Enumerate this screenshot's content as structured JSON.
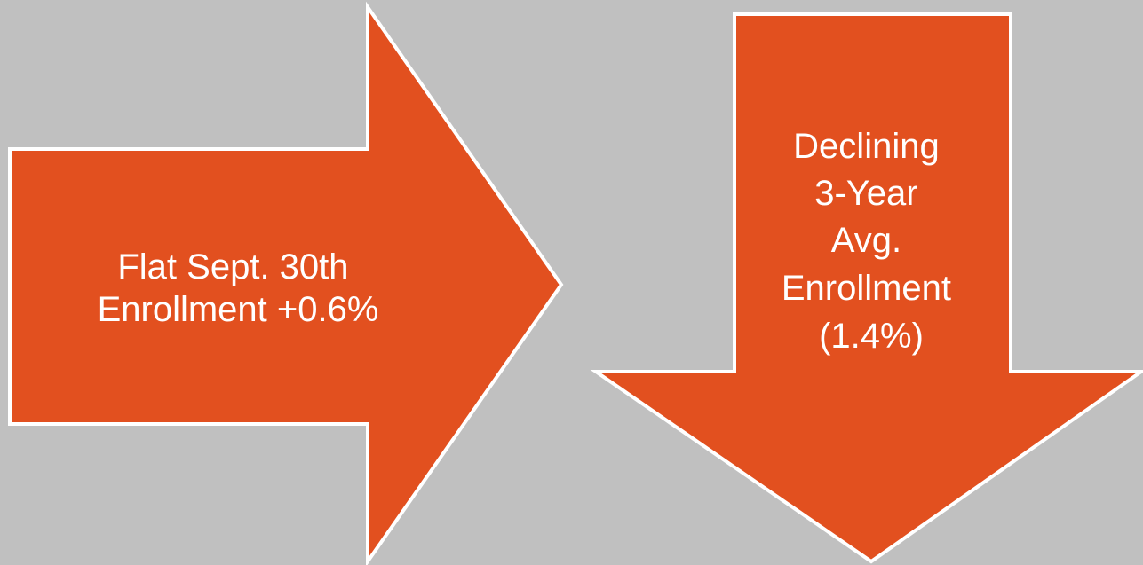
{
  "colors": {
    "background": "#c0c0c0",
    "arrow_fill": "#e2501f",
    "arrow_outline": "#ffffff",
    "text": "#ffffff"
  },
  "right_arrow": {
    "icon": "arrow-right-icon",
    "line1": "Flat Sept. 30th",
    "line2": "Enrollment +0.6%"
  },
  "down_arrow": {
    "icon": "arrow-down-icon",
    "line1": "Declining",
    "line2": "3-Year",
    "line3": "Avg.",
    "line4": "Enrollment",
    "line5": "(1.4%)"
  }
}
